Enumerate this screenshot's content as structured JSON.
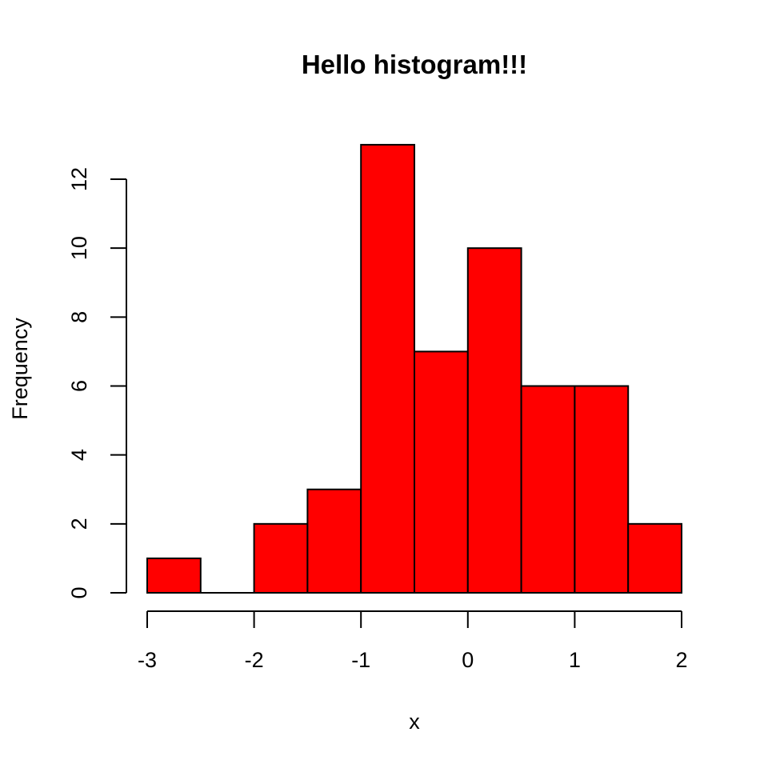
{
  "chart_data": {
    "type": "bar",
    "title": "Hello histogram!!!",
    "xlabel": "x",
    "ylabel": "Frequency",
    "bins": [
      {
        "start": -3.0,
        "end": -2.5,
        "count": 1
      },
      {
        "start": -2.5,
        "end": -2.0,
        "count": 0
      },
      {
        "start": -2.0,
        "end": -1.5,
        "count": 2
      },
      {
        "start": -1.5,
        "end": -1.0,
        "count": 3
      },
      {
        "start": -1.0,
        "end": -0.5,
        "count": 13
      },
      {
        "start": -0.5,
        "end": 0.0,
        "count": 7
      },
      {
        "start": 0.0,
        "end": 0.5,
        "count": 10
      },
      {
        "start": 0.5,
        "end": 1.0,
        "count": 6
      },
      {
        "start": 1.0,
        "end": 1.5,
        "count": 6
      },
      {
        "start": 1.5,
        "end": 2.0,
        "count": 2
      }
    ],
    "x_ticks": [
      {
        "value": -3,
        "label": "-3"
      },
      {
        "value": -2,
        "label": "-2"
      },
      {
        "value": -1,
        "label": "-1"
      },
      {
        "value": 0,
        "label": "0"
      },
      {
        "value": 1,
        "label": "1"
      },
      {
        "value": 2,
        "label": "2"
      }
    ],
    "y_ticks": [
      {
        "value": 0,
        "label": "0"
      },
      {
        "value": 2,
        "label": "2"
      },
      {
        "value": 4,
        "label": "4"
      },
      {
        "value": 6,
        "label": "6"
      },
      {
        "value": 8,
        "label": "8"
      },
      {
        "value": 10,
        "label": "10"
      },
      {
        "value": 12,
        "label": "12"
      }
    ],
    "xlim": [
      -3,
      2
    ],
    "ylim": [
      0,
      13
    ],
    "bar_color": "#FF0000",
    "bar_border_color": "#000000",
    "grid": false
  }
}
